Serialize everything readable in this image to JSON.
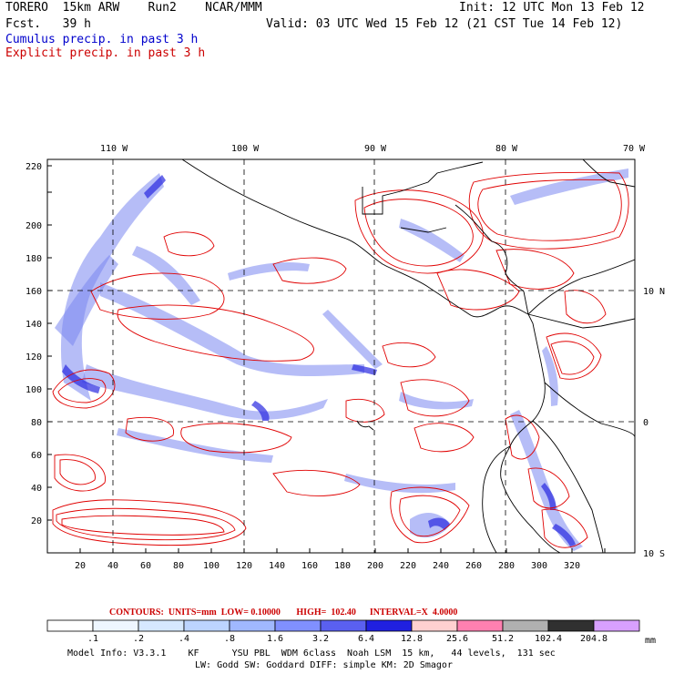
{
  "header": {
    "model_line": "TORERO  15km ARW    Run2    NCAR/MMM",
    "init_line": "Init: 12 UTC Mon 13 Feb 12",
    "fcst_line": "Fcst.   39 h",
    "valid_line": "Valid: 03 UTC Wed 15 Feb 12 (21 CST Tue 14 Feb 12)",
    "legend_cumulus": "Cumulus precip. in past 3 h",
    "legend_explicit": "Explicit precip. in past 3 h"
  },
  "colors": {
    "cumulus_text": "#0000cc",
    "explicit_text": "#cc0000",
    "contour_line": "#e00000",
    "coast": "#000000"
  },
  "map": {
    "lon_labels": [
      "110 W",
      "100 W",
      "90 W",
      "80 W",
      "70 W"
    ],
    "lat_labels": [
      "10 N",
      "0",
      "10 S"
    ],
    "x_ticks": [
      "20",
      "40",
      "60",
      "80",
      "100",
      "120",
      "140",
      "160",
      "180",
      "200",
      "220",
      "240",
      "260",
      "280",
      "300",
      "320"
    ],
    "y_ticks": [
      "20",
      "40",
      "60",
      "80",
      "100",
      "120",
      "140",
      "160",
      "180",
      "200",
      "220"
    ]
  },
  "contour_info": {
    "text": "CONTOURS:  UNITS=mm  LOW= 0.10000       HIGH=  102.40      INTERVAL=X  4.0000"
  },
  "colorbar": {
    "unit": "mm",
    "labels": [
      ".1",
      ".2",
      ".4",
      ".8",
      "1.6",
      "3.2",
      "6.4",
      "12.8",
      "25.6",
      "51.2",
      "102.4",
      "204.8"
    ],
    "colors": [
      "#ffffff",
      "#eef6ff",
      "#d6e8ff",
      "#bcd4ff",
      "#a0b8ff",
      "#8090ff",
      "#5a60f0",
      "#2020e0",
      "#ffd0d0",
      "#ff80b0",
      "#b0b0b0",
      "#303030",
      "#d8a0ff"
    ]
  },
  "model_info": {
    "line1": "Model Info: V3.3.1    KF      YSU PBL  WDM 6class  Noah LSM  15 km,   44 levels,  131 sec",
    "line2": "LW: Godd SW: Goddard DIFF: simple KM: 2D Smagor"
  }
}
